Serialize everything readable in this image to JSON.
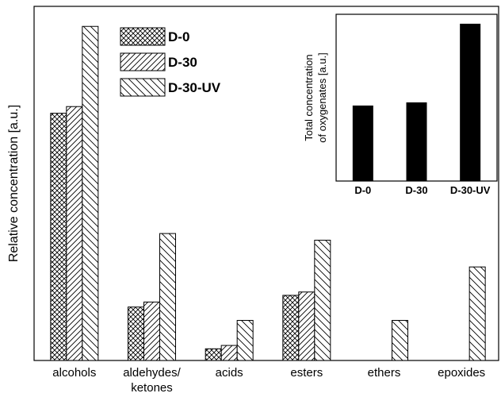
{
  "chart_data": [
    {
      "type": "bar",
      "categories": [
        "alcohols",
        "aldehydes/ ketones",
        "acids",
        "esters",
        "ethers",
        "epoxides"
      ],
      "series": [
        {
          "name": "D-0",
          "pattern": "crosshatch",
          "values": [
            74,
            16,
            3.5,
            19.5,
            0,
            0
          ]
        },
        {
          "name": "D-30",
          "pattern": "diag-dense",
          "values": [
            76,
            17.5,
            4.5,
            20.5,
            0,
            0
          ]
        },
        {
          "name": "D-30-UV",
          "pattern": "diag-sparse",
          "values": [
            100,
            38,
            12,
            36,
            12,
            28
          ]
        }
      ],
      "ylabel": "Relative concentration [a.u.]",
      "ylim": [
        0,
        106
      ],
      "grid": false,
      "legend": "top-left"
    },
    {
      "type": "bar",
      "categories": [
        "D-0",
        "D-30",
        "D-30-UV"
      ],
      "values": [
        48,
        50,
        100
      ],
      "ylabel_lines": [
        "Total concentration",
        "of oxygenates [a.u.]"
      ],
      "ylim": [
        0,
        106
      ],
      "color": "#000000",
      "legend": "none"
    }
  ]
}
